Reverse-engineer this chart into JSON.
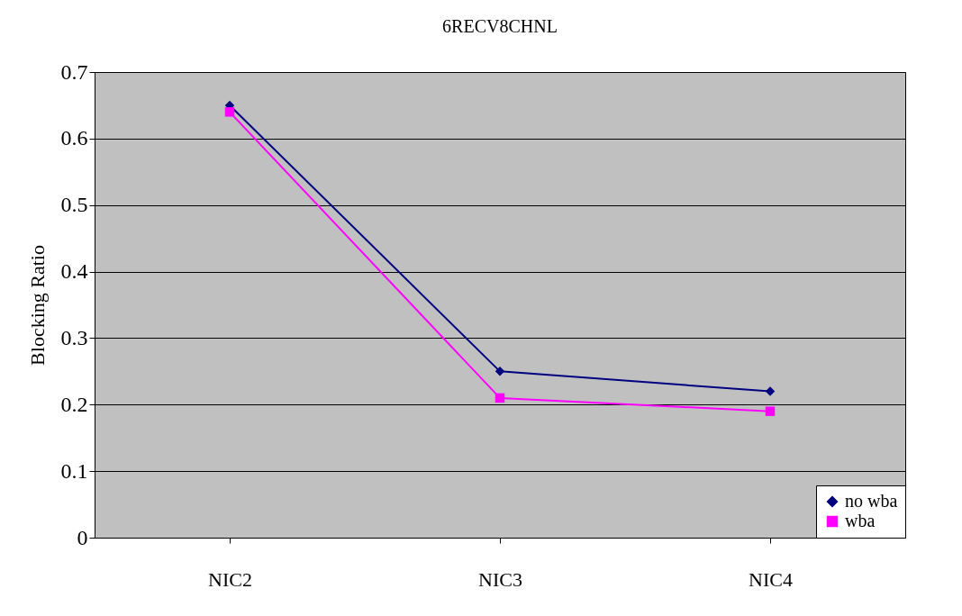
{
  "chart_data": {
    "type": "line",
    "title": "6RECV8CHNL",
    "ylabel": "Blocking Ratio",
    "categories": [
      "NIC2",
      "NIC3",
      "NIC4"
    ],
    "series": [
      {
        "name": "no wba",
        "color": "#000080",
        "marker": "diamond",
        "values": [
          0.65,
          0.25,
          0.22
        ]
      },
      {
        "name": "wba",
        "color": "#ff00ff",
        "marker": "square",
        "values": [
          0.64,
          0.21,
          0.19
        ]
      }
    ],
    "ylim": [
      0,
      0.7
    ],
    "yticks": [
      0,
      0.1,
      0.2,
      0.3,
      0.4,
      0.5,
      0.6,
      0.7
    ],
    "grid": "y",
    "legend": "bottom right"
  }
}
